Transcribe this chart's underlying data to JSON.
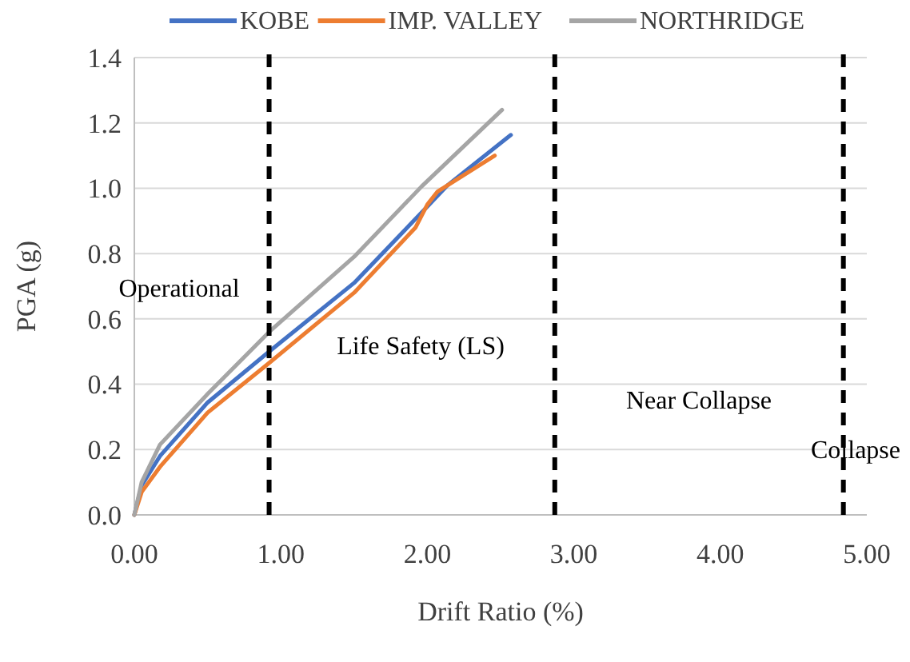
{
  "chart_data": {
    "type": "line",
    "xlabel": "Drift Ratio (%)",
    "ylabel": "PGA (g)",
    "xlim": [
      0,
      5
    ],
    "ylim": [
      0,
      1.4
    ],
    "xticks": [
      {
        "value": 0,
        "label": "0.00"
      },
      {
        "value": 1,
        "label": "1.00"
      },
      {
        "value": 2,
        "label": "2.00"
      },
      {
        "value": 3,
        "label": "3.00"
      },
      {
        "value": 4,
        "label": "4.00"
      },
      {
        "value": 5,
        "label": "5.00"
      }
    ],
    "yticks": [
      {
        "value": 0,
        "label": "0.0"
      },
      {
        "value": 0.2,
        "label": "0.2"
      },
      {
        "value": 0.4,
        "label": "0.4"
      },
      {
        "value": 0.6,
        "label": "0.6"
      },
      {
        "value": 0.8,
        "label": "0.8"
      },
      {
        "value": 1,
        "label": "1.0"
      },
      {
        "value": 1.2,
        "label": "1.2"
      },
      {
        "value": 1.4,
        "label": "1.4"
      }
    ],
    "grid": "y",
    "legend": "top",
    "marker": "none",
    "line_style": "solid",
    "series": [
      {
        "name": "KOBE",
        "color": "#4472c4",
        "x": [
          0,
          0.05,
          0.175,
          0.5,
          0.92,
          1.5,
          1.96,
          2.14,
          2.57
        ],
        "values": [
          0,
          0.09,
          0.18,
          0.344,
          0.5,
          0.71,
          0.925,
          1.01,
          1.163
        ]
      },
      {
        "name": "IMP. VALLEY",
        "color": "#ed7d31",
        "x": [
          0,
          0.05,
          0.175,
          0.5,
          0.92,
          1.5,
          1.92,
          2.0,
          2.07,
          2.46
        ],
        "values": [
          0,
          0.07,
          0.147,
          0.313,
          0.465,
          0.68,
          0.88,
          0.95,
          0.99,
          1.1
        ]
      },
      {
        "name": "NORTHRIDGE",
        "color": "#a5a5a5",
        "x": [
          0,
          0.05,
          0.175,
          0.5,
          0.92,
          1.5,
          1.96,
          2.51
        ],
        "values": [
          0,
          0.1,
          0.215,
          0.37,
          0.56,
          0.79,
          1.005,
          1.24
        ]
      }
    ],
    "ref_lines": [
      {
        "axis": "x",
        "value": 0.92,
        "color": "#000000",
        "line_style": "dashed"
      },
      {
        "axis": "x",
        "value": 2.87,
        "color": "#000000",
        "line_style": "dashed"
      },
      {
        "axis": "x",
        "value": 4.84,
        "color": "#000000",
        "line_style": "dashed"
      }
    ],
    "annotations": [
      "Operational",
      "Life Safety (LS)",
      "Near Collapse",
      "Collapse"
    ]
  }
}
